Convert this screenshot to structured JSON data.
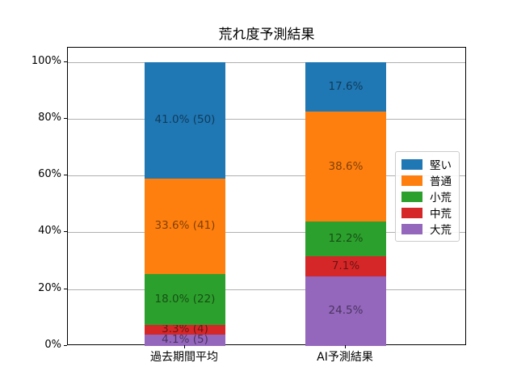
{
  "chart_data": {
    "type": "bar",
    "stacked": true,
    "title": "荒れ度予測結果",
    "categories": [
      "過去期間平均",
      "AI予測結果"
    ],
    "series": [
      {
        "name": "大荒",
        "color": "#9467bd",
        "values": [
          4.1,
          24.5
        ],
        "labels": [
          "4.1% (5)",
          "24.5%"
        ]
      },
      {
        "name": "中荒",
        "color": "#d62728",
        "values": [
          3.3,
          7.1
        ],
        "labels": [
          "3.3% (4)",
          "7.1%"
        ]
      },
      {
        "name": "小荒",
        "color": "#2ca02c",
        "values": [
          18.0,
          12.2
        ],
        "labels": [
          "18.0% (22)",
          "12.2%"
        ]
      },
      {
        "name": "普通",
        "color": "#ff7f0e",
        "values": [
          33.6,
          38.6
        ],
        "labels": [
          "33.6% (41)",
          "38.6%"
        ]
      },
      {
        "name": "堅い",
        "color": "#1f77b4",
        "values": [
          41.0,
          17.6
        ],
        "labels": [
          "41.0% (50)",
          "17.6%"
        ]
      }
    ],
    "legend": {
      "position": "center-right",
      "entries": [
        "堅い",
        "普通",
        "小荒",
        "中荒",
        "大荒"
      ]
    },
    "y_axis": {
      "ticks": [
        "0%",
        "20%",
        "40%",
        "60%",
        "80%",
        "100%"
      ],
      "tick_values": [
        0,
        20,
        40,
        60,
        80,
        100
      ],
      "ylim": [
        0,
        105
      ]
    },
    "xlabel": "",
    "ylabel": "",
    "grid": true,
    "grid_color": "#b0b0b0"
  }
}
